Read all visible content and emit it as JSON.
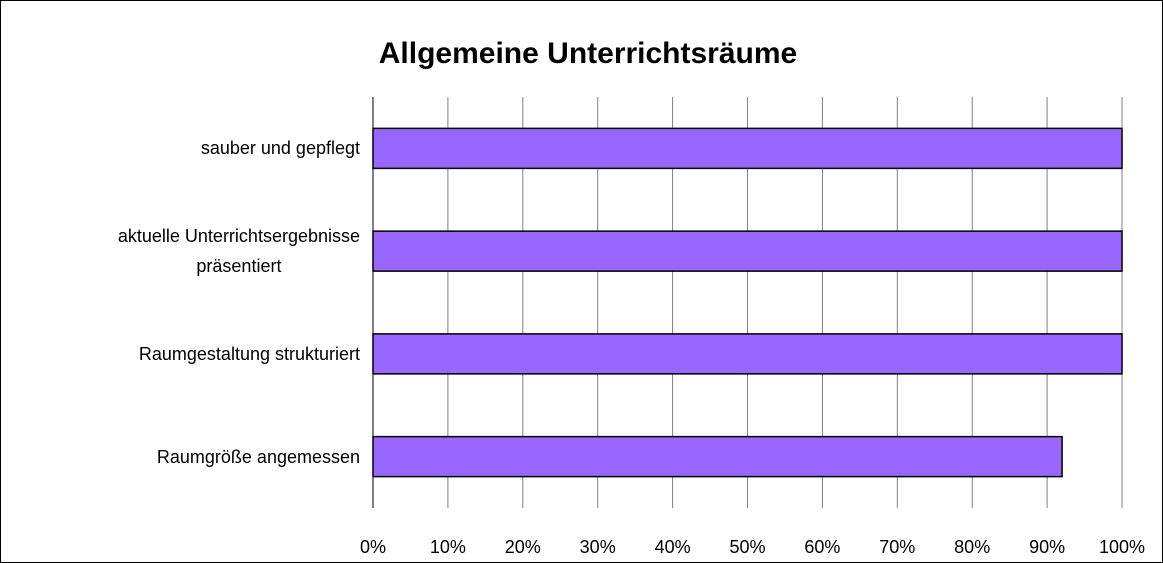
{
  "chart_data": {
    "type": "hbar",
    "title": "Allgemeine Unterrichtsräume",
    "categories": [
      "sauber und gepflegt",
      "aktuelle Unterrichtsergebnisse\npräsentiert",
      "Raumgestaltung strukturiert",
      "Raumgröße angemessen"
    ],
    "values": [
      100,
      100,
      100,
      92
    ],
    "color": "#9966ff",
    "xlim": [
      0,
      100
    ],
    "xticks": [
      {
        "value": 0,
        "label": "0%"
      },
      {
        "value": 10,
        "label": "10%"
      },
      {
        "value": 20,
        "label": "20%"
      },
      {
        "value": 30,
        "label": "30%"
      },
      {
        "value": 40,
        "label": "40%"
      },
      {
        "value": 50,
        "label": "50%"
      },
      {
        "value": 60,
        "label": "60%"
      },
      {
        "value": 70,
        "label": "70%"
      },
      {
        "value": 80,
        "label": "80%"
      },
      {
        "value": 90,
        "label": "90%"
      },
      {
        "value": 100,
        "label": "100%"
      }
    ],
    "grid": true
  }
}
